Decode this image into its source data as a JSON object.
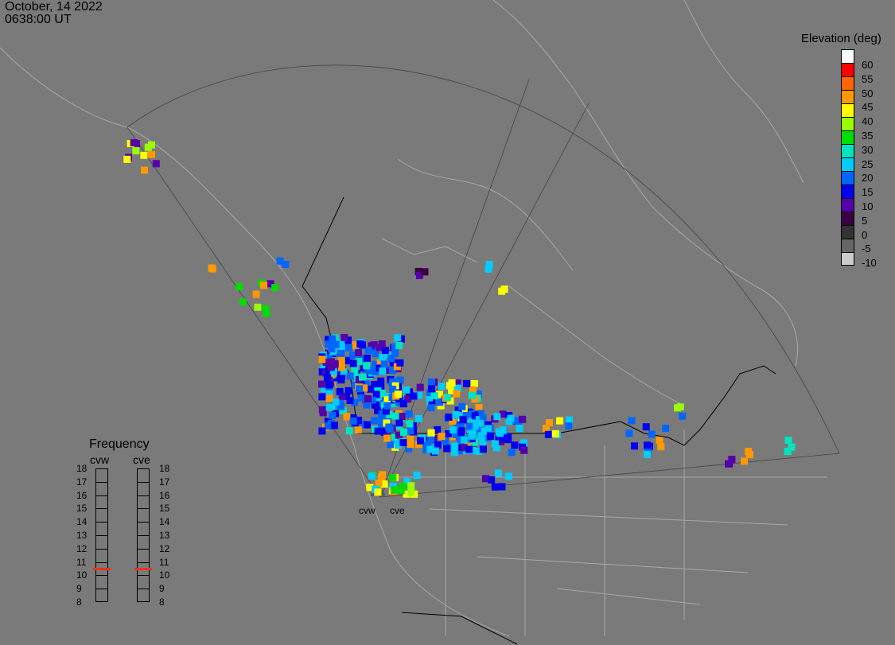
{
  "header": {
    "date": "October, 14 2022",
    "time": "0638:00 UT"
  },
  "legend": {
    "title": "Elevation (deg)",
    "levels": [
      {
        "label": "60",
        "color": "#ffffff"
      },
      {
        "label": "55",
        "color": "#ff0000"
      },
      {
        "label": "50",
        "color": "#ff6600"
      },
      {
        "label": "45",
        "color": "#ff9900"
      },
      {
        "label": "40",
        "color": "#ffff00"
      },
      {
        "label": "35",
        "color": "#99ff00"
      },
      {
        "label": "30",
        "color": "#00dd00"
      },
      {
        "label": "25",
        "color": "#00e5c0"
      },
      {
        "label": "20",
        "color": "#00ccff"
      },
      {
        "label": "15",
        "color": "#0066ff"
      },
      {
        "label": "10",
        "color": "#0000ee"
      },
      {
        "label": "5",
        "color": "#5500aa"
      },
      {
        "label": "0",
        "color": "#3a0044"
      },
      {
        "label": "-5",
        "color": "#333333"
      },
      {
        "label": "-10",
        "color": "#666666"
      },
      {
        "label": "",
        "color": "#cccccc"
      }
    ]
  },
  "frequency": {
    "title": "Frequency",
    "radars": [
      "cvw",
      "cve"
    ],
    "scale": [
      "18",
      "17",
      "16",
      "15",
      "14",
      "13",
      "12",
      "11",
      "10",
      "9",
      "8"
    ],
    "selected_mhz": [
      10.5,
      10.5
    ]
  },
  "radar_sites": [
    "cvw",
    "cve"
  ]
}
